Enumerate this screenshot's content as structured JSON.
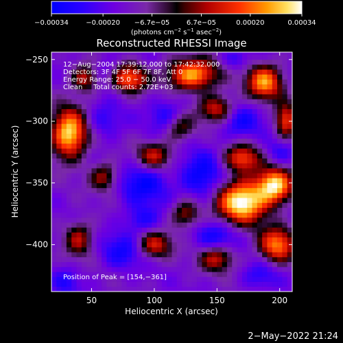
{
  "chart_data": {
    "type": "heatmap",
    "title": "Reconstructed RHESSI Image",
    "xlabel": "Heliocentric X (arcsec)",
    "ylabel": "Heliocentric Y (arcsec)",
    "xlim": [
      18,
      210
    ],
    "ylim": [
      -438,
      -244
    ],
    "x_ticks": [
      50,
      100,
      150,
      200
    ],
    "x_tick_labels": [
      "50",
      "100",
      "150",
      "200"
    ],
    "y_ticks": [
      -250,
      -300,
      -350,
      -400
    ],
    "y_tick_labels": [
      "−250",
      "−300",
      "−350",
      "−400"
    ],
    "colorbar": {
      "range": [
        -0.00034,
        0.00034
      ],
      "ticks": [
        -0.00034,
        -0.0002,
        -6.7e-05,
        6.7e-05,
        0.0002,
        0.00034
      ],
      "tick_labels": [
        "−0.00034",
        "−0.00020",
        "−6.7e−05",
        "6.7e−05",
        "0.00020",
        "0.00034"
      ],
      "unit_main": "(photons cm",
      "unit_exp1": "−2",
      "unit_mid": " s",
      "unit_exp2": "−1",
      "unit_mid2": " asec",
      "unit_exp3": "−2",
      "unit_end": ")"
    },
    "annotations": [
      "12−Aug−2004 17:39:12.000 to 17:42:32.000",
      "Detectors: 3F 4F 5F 6F 7F 8F, Att 0",
      "Energy Range: 25.0 − 50.0 keV",
      "Clean     Total counts: 2.72E+03"
    ],
    "peak_label": "Position of Peak = [154,−361]",
    "peak": [
      154,
      -361
    ],
    "hotspots": [
      {
        "x": 170,
        "y": -365,
        "amp": 1.0,
        "sx": 14,
        "sy": 12
      },
      {
        "x": 196,
        "y": -352,
        "amp": 0.85,
        "sx": 10,
        "sy": 10
      },
      {
        "x": 130,
        "y": -262,
        "amp": 0.8,
        "sx": 14,
        "sy": 9
      },
      {
        "x": 188,
        "y": -268,
        "amp": 0.75,
        "sx": 10,
        "sy": 10
      },
      {
        "x": 32,
        "y": -310,
        "amp": 0.9,
        "sx": 10,
        "sy": 14
      },
      {
        "x": 80,
        "y": -265,
        "amp": 0.65,
        "sx": 10,
        "sy": 8
      },
      {
        "x": 150,
        "y": -290,
        "amp": 0.55,
        "sx": 10,
        "sy": 8
      },
      {
        "x": 198,
        "y": -400,
        "amp": 0.7,
        "sx": 10,
        "sy": 10
      },
      {
        "x": 150,
        "y": -410,
        "amp": 0.55,
        "sx": 10,
        "sy": 8
      },
      {
        "x": 100,
        "y": -400,
        "amp": 0.5,
        "sx": 10,
        "sy": 8
      },
      {
        "x": 40,
        "y": -395,
        "amp": 0.45,
        "sx": 8,
        "sy": 10
      },
      {
        "x": 100,
        "y": -328,
        "amp": 0.5,
        "sx": 10,
        "sy": 8
      },
      {
        "x": 60,
        "y": -345,
        "amp": 0.45,
        "sx": 8,
        "sy": 8
      },
      {
        "x": 170,
        "y": -330,
        "amp": 0.6,
        "sx": 10,
        "sy": 8
      },
      {
        "x": 205,
        "y": -300,
        "amp": 0.6,
        "sx": 6,
        "sy": 10
      },
      {
        "x": 120,
        "y": -305,
        "amp": 0.4,
        "sx": 8,
        "sy": 8
      },
      {
        "x": 45,
        "y": -265,
        "amp": 0.5,
        "sx": 8,
        "sy": 8
      },
      {
        "x": 125,
        "y": -375,
        "amp": 0.45,
        "sx": 8,
        "sy": 8
      }
    ],
    "coldspots": [
      {
        "x": 92,
        "y": -350,
        "amp": 0.7,
        "sx": 14,
        "sy": 12
      },
      {
        "x": 138,
        "y": -345,
        "amp": 0.75,
        "sx": 12,
        "sy": 14
      },
      {
        "x": 168,
        "y": -300,
        "amp": 0.6,
        "sx": 12,
        "sy": 10
      },
      {
        "x": 110,
        "y": -295,
        "amp": 0.55,
        "sx": 10,
        "sy": 10
      },
      {
        "x": 60,
        "y": -300,
        "amp": 0.45,
        "sx": 10,
        "sy": 10
      },
      {
        "x": 150,
        "y": -395,
        "amp": 0.65,
        "sx": 12,
        "sy": 10
      },
      {
        "x": 75,
        "y": -405,
        "amp": 0.6,
        "sx": 12,
        "sy": 10
      },
      {
        "x": 90,
        "y": -380,
        "amp": 0.55,
        "sx": 10,
        "sy": 8
      },
      {
        "x": 185,
        "y": -425,
        "amp": 0.45,
        "sx": 10,
        "sy": 8
      },
      {
        "x": 30,
        "y": -430,
        "amp": 0.45,
        "sx": 8,
        "sy": 8
      },
      {
        "x": 60,
        "y": -260,
        "amp": 0.4,
        "sx": 8,
        "sy": 8
      },
      {
        "x": 165,
        "y": -250,
        "amp": 0.4,
        "sx": 8,
        "sy": 6
      },
      {
        "x": 200,
        "y": -325,
        "amp": 0.45,
        "sx": 8,
        "sy": 8
      }
    ]
  },
  "footer": {
    "date_stamp": "2−May−2022 21:24"
  }
}
